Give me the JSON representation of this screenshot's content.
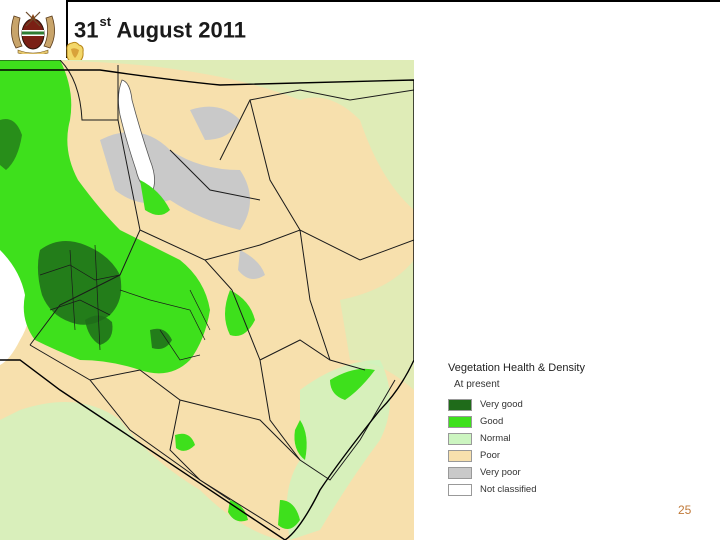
{
  "header": {
    "title_day": "31",
    "title_suffix": "st",
    "title_rest": "August 2011"
  },
  "legend": {
    "title": "Vegetation Health & Density",
    "subtitle": "At present",
    "items": [
      {
        "label": "Very good",
        "color": "#1f6b1a"
      },
      {
        "label": "Good",
        "color": "#3ee01c"
      },
      {
        "label": "Normal",
        "color": "#ccf5c0"
      },
      {
        "label": "Poor",
        "color": "#f7e0ad"
      },
      {
        "label": "Very poor",
        "color": "#c9c9c9"
      },
      {
        "label": "Not classified",
        "color": "#ffffff"
      }
    ]
  },
  "footer": {
    "page_number": "25"
  }
}
